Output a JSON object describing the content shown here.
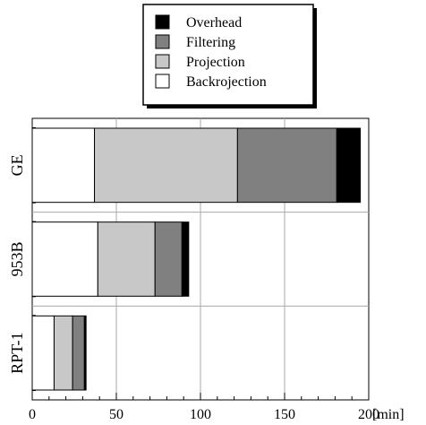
{
  "chart_data": {
    "type": "bar",
    "orientation": "horizontal",
    "stacked": true,
    "categories": [
      "GE",
      "953B",
      "RPT-1"
    ],
    "series": [
      {
        "name": "Backrojection",
        "color": "#ffffff",
        "values": [
          37,
          39,
          13
        ]
      },
      {
        "name": "Projection",
        "color": "#c8c8c8",
        "values": [
          85,
          34,
          11
        ]
      },
      {
        "name": "Filtering",
        "color": "#808080",
        "values": [
          59,
          16,
          7
        ]
      },
      {
        "name": "Overhead",
        "color": "#000000",
        "values": [
          14,
          4,
          1
        ]
      }
    ],
    "legend_order": [
      "Overhead",
      "Filtering",
      "Projection",
      "Backrojection"
    ],
    "legend_position": "top",
    "xlabel": "[min]",
    "xlim": [
      0,
      200
    ],
    "xticks": [
      "0",
      "50",
      "100",
      "150",
      "200"
    ],
    "grid": true
  }
}
